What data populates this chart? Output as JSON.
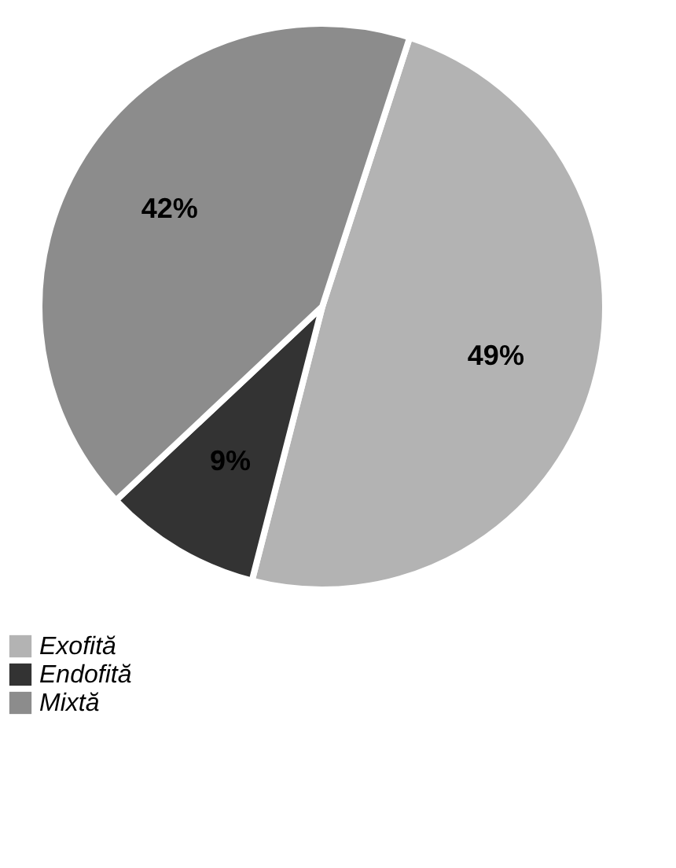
{
  "chart_data": {
    "type": "pie",
    "categories": [
      "Exofită",
      "Endofită",
      "Mixtă"
    ],
    "values": [
      49,
      9,
      42
    ],
    "colors": [
      "#b3b3b3",
      "#333333",
      "#8c8c8c"
    ],
    "value_labels": [
      "49%",
      "9%",
      "42%"
    ],
    "legend": "bottom"
  }
}
